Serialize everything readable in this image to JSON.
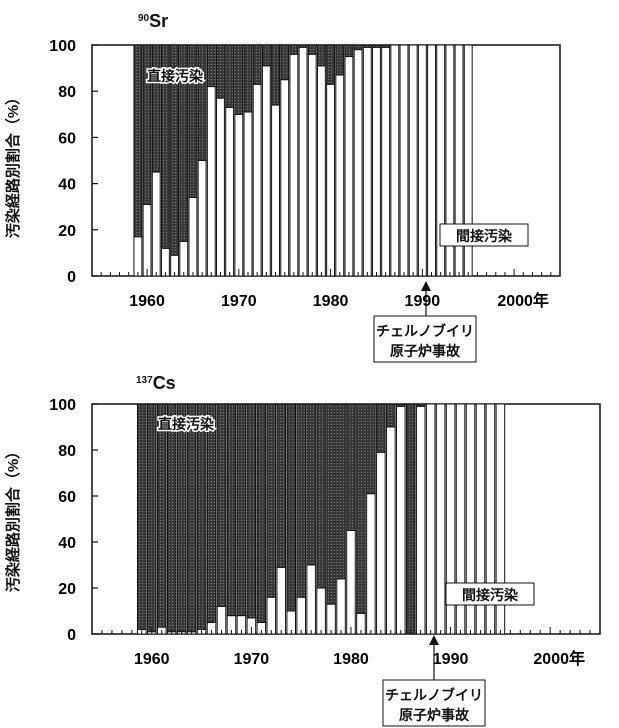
{
  "charts": [
    {
      "isotope_mass": "90",
      "isotope_symbol": "Sr",
      "ylabel": "汚染経路別割合（%）",
      "year_suffix": "年",
      "direct_label": "直接汚染",
      "indirect_label": "間接汚染",
      "event_label_line1": "チェルノブイリ",
      "event_label_line2": "原子炉事故"
    },
    {
      "isotope_mass": "137",
      "isotope_symbol": "Cs",
      "ylabel": "汚染経路別割合（%）",
      "year_suffix": "年",
      "direct_label": "直接汚染",
      "indirect_label": "間接汚染",
      "event_label_line1": "チェルノブイリ",
      "event_label_line2": "原子炉事故"
    }
  ],
  "chart_data": [
    {
      "type": "bar",
      "stacked": true,
      "title": "90Sr",
      "ylabel": "汚染経路別割合（%）",
      "ylim": [
        0,
        100
      ],
      "yticks": [
        0,
        20,
        40,
        60,
        80,
        100
      ],
      "xlim": [
        1954,
        2005
      ],
      "xticks": [
        1960,
        1970,
        1980,
        1990,
        2000
      ],
      "xtick_labels": [
        "1960",
        "1970",
        "1980",
        "1990",
        "2000年"
      ],
      "annotation": {
        "x": 1986,
        "text": "チェルノブイリ 原子炉事故"
      },
      "colors": {
        "direct": "#3d3d3d",
        "indirect": "#ffffff"
      },
      "series": [
        {
          "name": "間接汚染",
          "role": "indirect",
          "x": [
            1959,
            1960,
            1961,
            1962,
            1963,
            1964,
            1965,
            1966,
            1967,
            1968,
            1969,
            1970,
            1971,
            1972,
            1973,
            1974,
            1975,
            1976,
            1977,
            1978,
            1979,
            1980,
            1981,
            1982,
            1983,
            1984,
            1985,
            1986,
            1987,
            1988,
            1989,
            1990,
            1991,
            1992,
            1993,
            1994,
            1995
          ],
          "values": [
            17,
            31,
            45,
            12,
            9,
            15,
            34,
            50,
            82,
            77,
            73,
            70,
            71,
            83,
            91,
            74,
            85,
            96,
            99,
            96,
            91,
            83,
            87,
            95,
            98,
            99,
            99,
            99,
            100,
            100,
            100,
            100,
            100,
            100,
            100,
            100,
            100
          ]
        },
        {
          "name": "直接汚染",
          "role": "direct",
          "x": [
            1959,
            1960,
            1961,
            1962,
            1963,
            1964,
            1965,
            1966,
            1967,
            1968,
            1969,
            1970,
            1971,
            1972,
            1973,
            1974,
            1975,
            1976,
            1977,
            1978,
            1979,
            1980,
            1981,
            1982,
            1983,
            1984,
            1985,
            1986,
            1987,
            1988,
            1989,
            1990,
            1991,
            1992,
            1993,
            1994,
            1995
          ],
          "values": [
            83,
            69,
            55,
            88,
            91,
            85,
            66,
            50,
            18,
            23,
            27,
            30,
            29,
            17,
            9,
            26,
            15,
            4,
            1,
            4,
            9,
            17,
            13,
            5,
            2,
            1,
            1,
            1,
            0,
            0,
            0,
            0,
            0,
            0,
            0,
            0,
            0
          ]
        }
      ]
    },
    {
      "type": "bar",
      "stacked": true,
      "title": "137Cs",
      "ylabel": "汚染経路別割合（%）",
      "ylim": [
        0,
        100
      ],
      "yticks": [
        0,
        20,
        40,
        60,
        80,
        100
      ],
      "xlim": [
        1954,
        2005
      ],
      "xticks": [
        1960,
        1970,
        1980,
        1990,
        2000
      ],
      "xtick_labels": [
        "1960",
        "1970",
        "1980",
        "1990",
        "2000年"
      ],
      "annotation": {
        "x": 1986,
        "text": "チェルノブイリ 原子炉事故"
      },
      "colors": {
        "direct": "#3d3d3d",
        "indirect": "#ffffff"
      },
      "series": [
        {
          "name": "間接汚染",
          "role": "indirect",
          "x": [
            1959,
            1960,
            1961,
            1962,
            1963,
            1964,
            1965,
            1966,
            1967,
            1968,
            1969,
            1970,
            1971,
            1972,
            1973,
            1974,
            1975,
            1976,
            1977,
            1978,
            1979,
            1980,
            1981,
            1982,
            1983,
            1984,
            1985,
            1986,
            1987,
            1988,
            1989,
            1990,
            1991,
            1992,
            1993,
            1994,
            1995
          ],
          "values": [
            2,
            1,
            3,
            1,
            1,
            1,
            2,
            5,
            12,
            8,
            8,
            7,
            5,
            16,
            29,
            10,
            16,
            30,
            20,
            13,
            24,
            45,
            9,
            61,
            79,
            90,
            99,
            0,
            99,
            100,
            100,
            100,
            100,
            100,
            100,
            100,
            100
          ]
        },
        {
          "name": "直接汚染",
          "role": "direct",
          "x": [
            1959,
            1960,
            1961,
            1962,
            1963,
            1964,
            1965,
            1966,
            1967,
            1968,
            1969,
            1970,
            1971,
            1972,
            1973,
            1974,
            1975,
            1976,
            1977,
            1978,
            1979,
            1980,
            1981,
            1982,
            1983,
            1984,
            1985,
            1986,
            1987,
            1988,
            1989,
            1990,
            1991,
            1992,
            1993,
            1994,
            1995
          ],
          "values": [
            98,
            99,
            97,
            99,
            99,
            99,
            98,
            95,
            88,
            92,
            92,
            93,
            95,
            84,
            71,
            90,
            84,
            70,
            80,
            87,
            76,
            55,
            91,
            39,
            21,
            10,
            1,
            100,
            1,
            0,
            0,
            0,
            0,
            0,
            0,
            0,
            0
          ]
        }
      ]
    }
  ]
}
